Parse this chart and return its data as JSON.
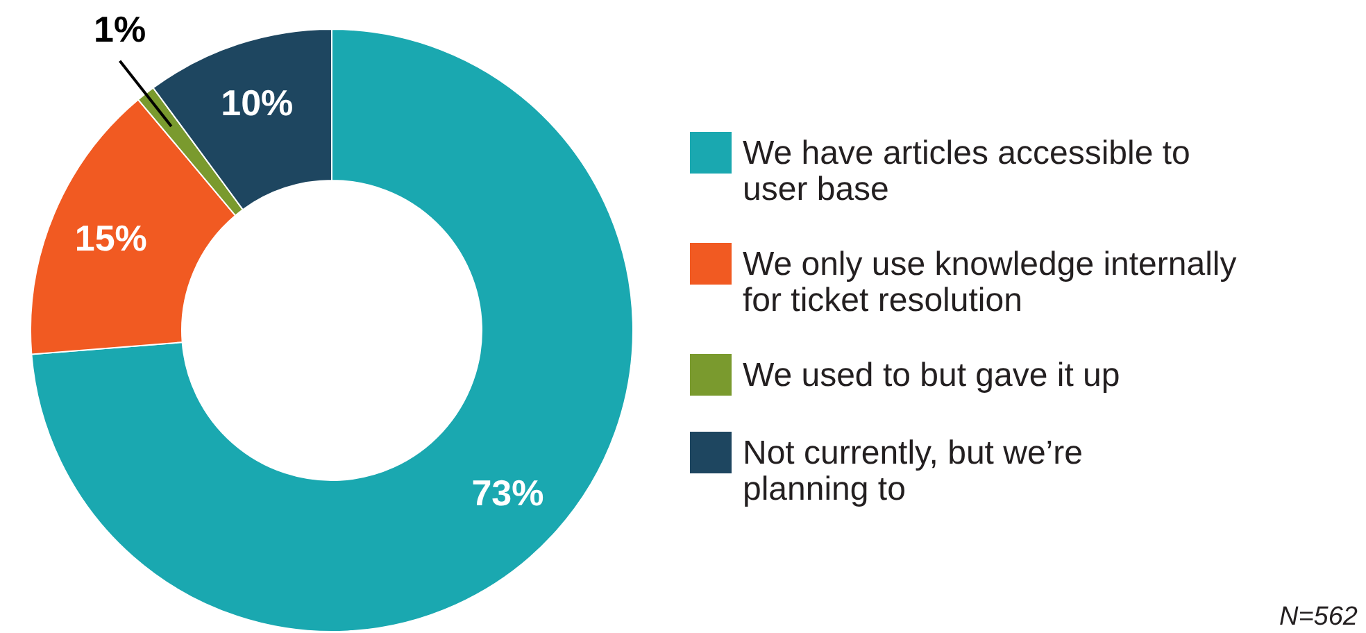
{
  "chart_data": {
    "type": "donut",
    "categories": [
      "We have articles accessible to user base",
      "We only use knowledge internally for ticket resolution",
      "We used to but gave it up",
      "Not currently, but we’re planning to"
    ],
    "values": [
      73,
      15,
      1,
      10
    ],
    "colors": [
      "#1aa8b0",
      "#f15a22",
      "#7a9a2e",
      "#1e4660"
    ],
    "value_labels": [
      "73%",
      "15%",
      "1%",
      "10%"
    ],
    "legend": "right",
    "annotations": [
      "N=562"
    ]
  }
}
